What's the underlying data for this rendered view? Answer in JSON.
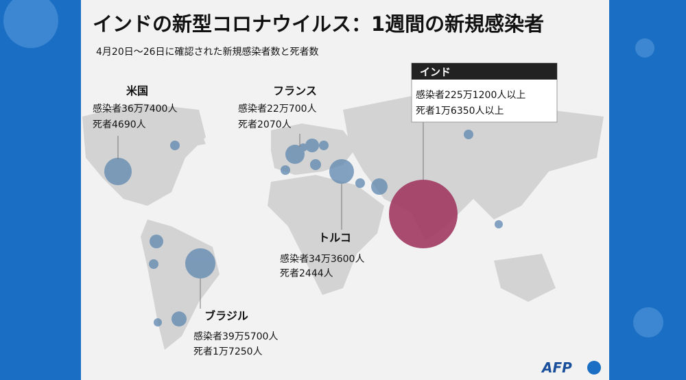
{
  "header": {
    "title": "インドの新型コロナウイルス：1週間の新規感染者",
    "subtitle": "4月20日～26日に確認された新規感染者数と死者数"
  },
  "callouts": [
    {
      "country": "米国",
      "cases": "感染者36万7400人",
      "deaths": "死者4690人"
    },
    {
      "country": "フランス",
      "cases": "感染者22万700人",
      "deaths": "死者2070人"
    },
    {
      "country": "インド",
      "cases": "感染者225万1200人以上",
      "deaths": "死者1万6350人以上"
    },
    {
      "country": "トルコ",
      "cases": "感染者34万3600人",
      "deaths": "死者2444人"
    },
    {
      "country": "ブラジル",
      "cases": "感染者39万5700人",
      "deaths": "死者1万7250人"
    }
  ],
  "source": "AFP"
}
